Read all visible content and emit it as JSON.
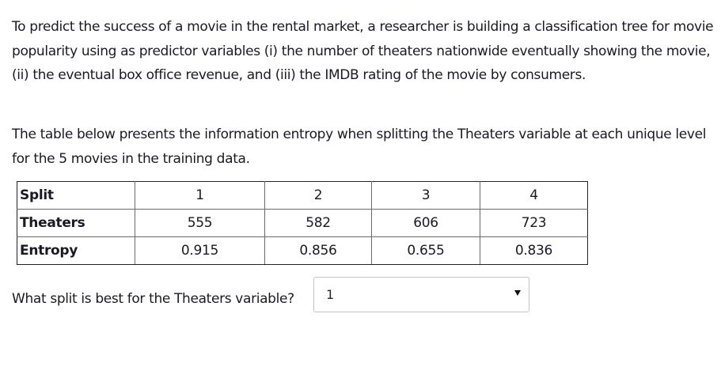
{
  "intro_paragraph": "To predict the success of a movie in the rental market, a researcher is building a classification tree for movie popularity using as predictor variables (i) the number of theaters nationwide eventually showing the movie, (ii) the eventual box office revenue, and (iii) the IMDB rating of the movie by consumers.",
  "table_intro": "The table below presents the information entropy when splitting the Theaters variable at each unique level for the 5 movies in the training data.",
  "table": {
    "rows": [
      {
        "header": "Split",
        "values": [
          "1",
          "2",
          "3",
          "4"
        ]
      },
      {
        "header": "Theaters",
        "values": [
          "555",
          "582",
          "606",
          "723"
        ]
      },
      {
        "header": "Entropy",
        "values": [
          "0.915",
          "0.856",
          "0.655",
          "0.836"
        ]
      }
    ]
  },
  "question": {
    "label": "What split is best for the Theaters variable?",
    "select": {
      "selected_value": "1",
      "arrow_icon": "caret-down-icon"
    }
  }
}
